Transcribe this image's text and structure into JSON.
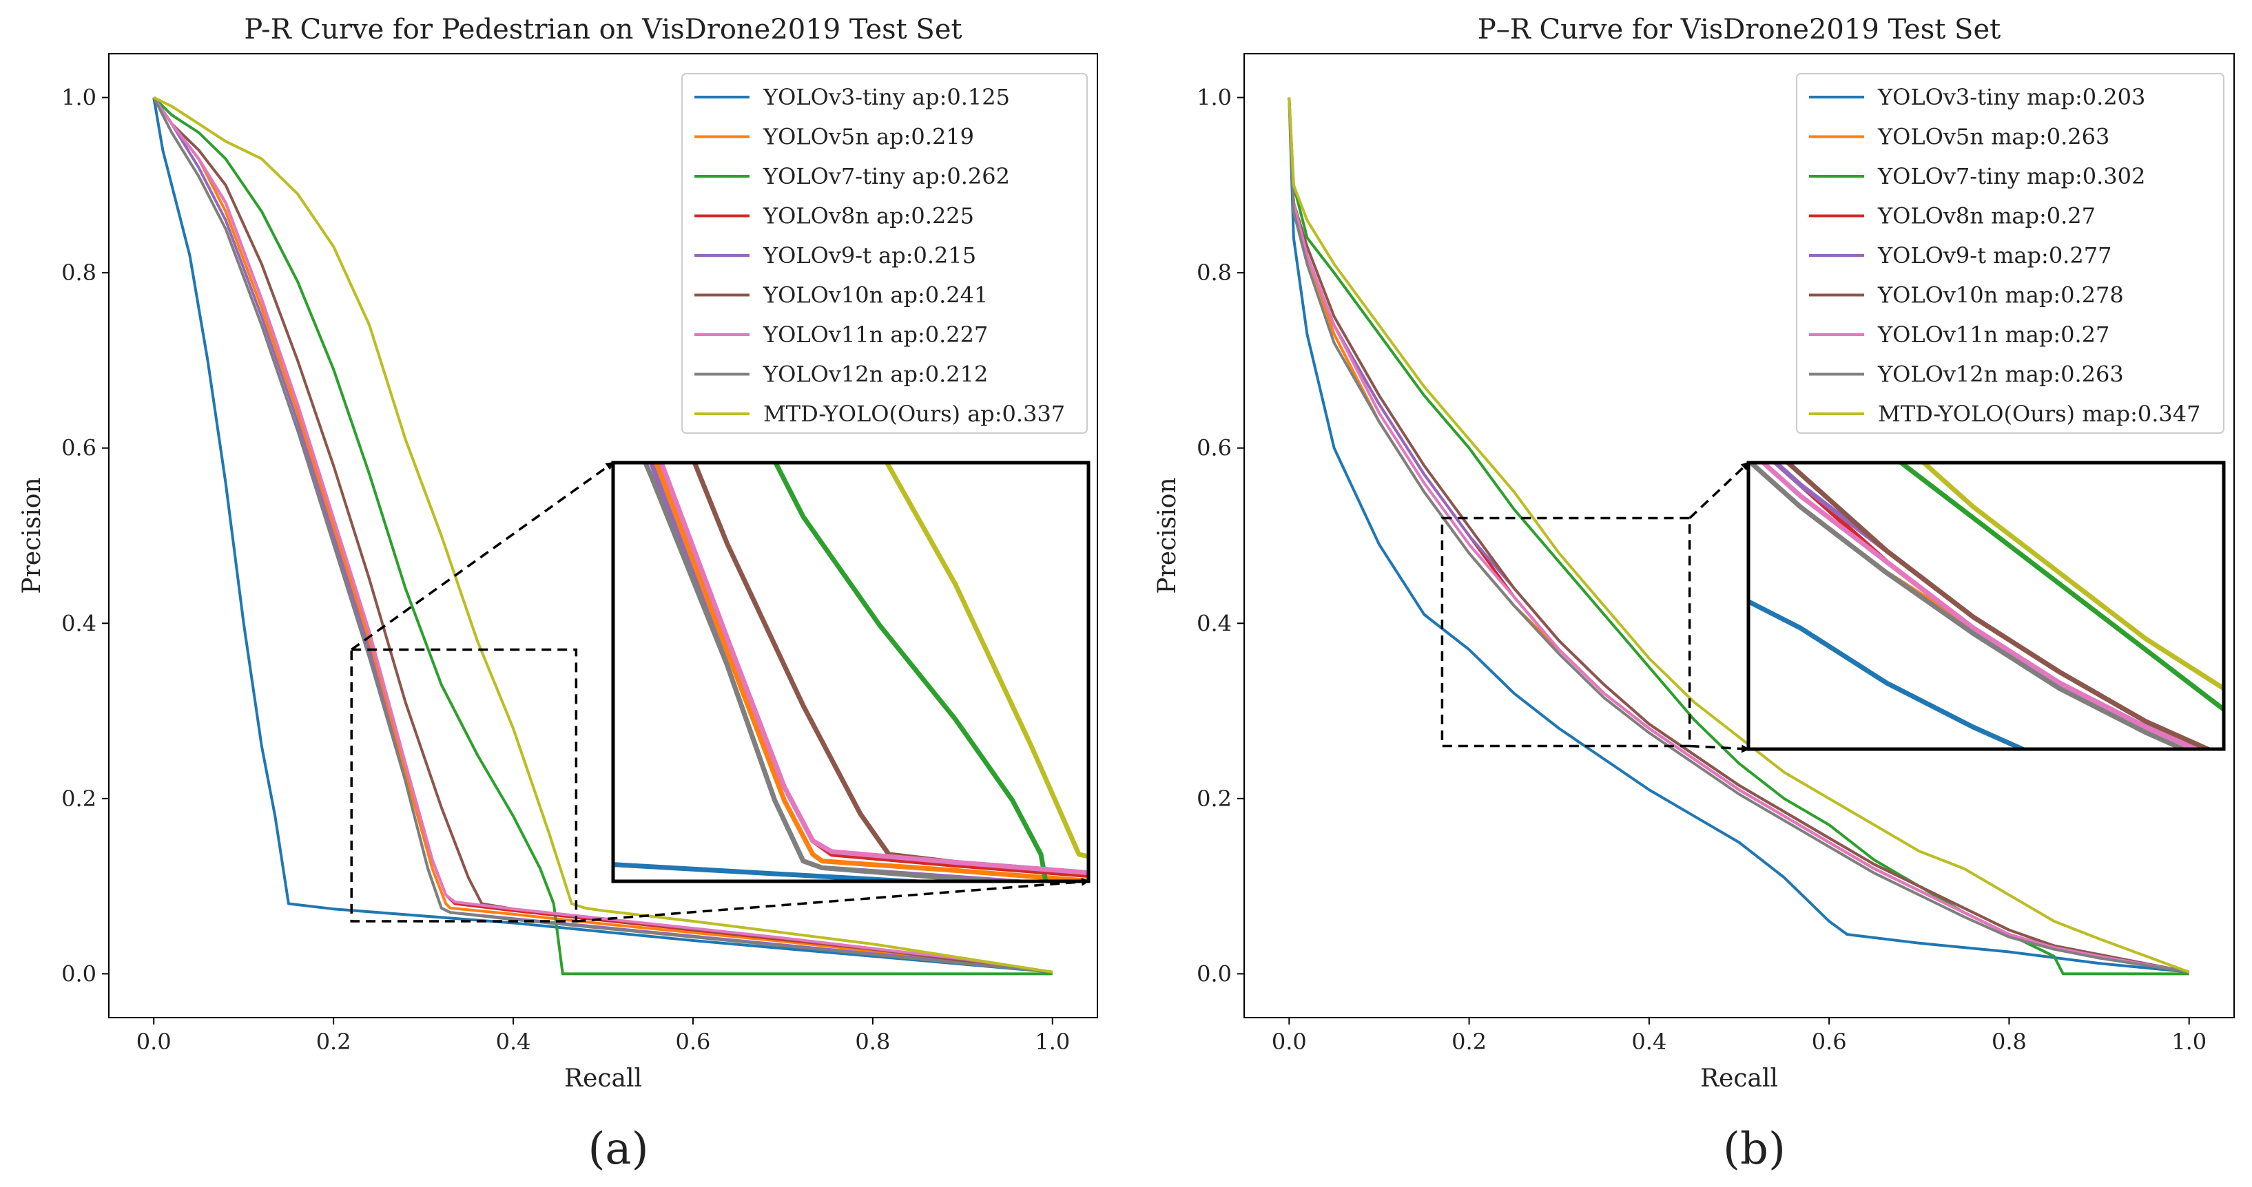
{
  "colors": {
    "tab_blue": "#1f77b4",
    "tab_orange": "#ff7f0e",
    "tab_green": "#2ca02c",
    "tab_red": "#d62728",
    "tab_purple": "#9467bd",
    "tab_brown": "#8c564b",
    "tab_pink": "#e377c2",
    "tab_gray": "#7f7f7f",
    "tab_olive": "#bcbd22"
  },
  "chart_data": [
    {
      "type": "line",
      "panel_label": "(a)",
      "title": "P-R Curve for Pedestrian on VisDrone2019 Test Set",
      "xlabel": "Recall",
      "ylabel": "Precision",
      "xlim": [
        -0.05,
        1.05
      ],
      "ylim": [
        -0.05,
        1.05
      ],
      "xticks": [
        "0.0",
        "0.2",
        "0.4",
        "0.6",
        "0.8",
        "1.0"
      ],
      "yticks": [
        "0.0",
        "0.2",
        "0.4",
        "0.6",
        "0.8",
        "1.0"
      ],
      "legend_position": "top-right",
      "grid": false,
      "zoom_region": {
        "x": [
          0.22,
          0.47
        ],
        "y": [
          0.06,
          0.37
        ]
      },
      "series": [
        {
          "name": "YOLOv3-tiny ap:0.125",
          "color": "#1f77b4",
          "x": [
            0.0,
            0.01,
            0.02,
            0.04,
            0.06,
            0.08,
            0.1,
            0.12,
            0.135,
            0.15,
            0.2,
            0.3,
            0.4,
            0.5,
            0.6,
            0.7,
            0.8,
            0.9,
            1.0
          ],
          "y": [
            1.0,
            0.94,
            0.9,
            0.82,
            0.7,
            0.56,
            0.4,
            0.26,
            0.18,
            0.08,
            0.074,
            0.066,
            0.058,
            0.048,
            0.038,
            0.029,
            0.02,
            0.011,
            0.002
          ]
        },
        {
          "name": "YOLOv5n ap:0.219",
          "color": "#ff7f0e",
          "x": [
            0.0,
            0.02,
            0.05,
            0.08,
            0.12,
            0.16,
            0.2,
            0.24,
            0.28,
            0.31,
            0.325,
            0.33,
            0.4,
            0.5,
            0.6,
            0.7,
            0.8,
            0.9,
            1.0
          ],
          "y": [
            1.0,
            0.97,
            0.93,
            0.87,
            0.76,
            0.64,
            0.51,
            0.38,
            0.23,
            0.12,
            0.08,
            0.075,
            0.068,
            0.057,
            0.047,
            0.037,
            0.026,
            0.014,
            0.002
          ]
        },
        {
          "name": "YOLOv7-tiny ap:0.262",
          "color": "#2ca02c",
          "x": [
            0.0,
            0.02,
            0.05,
            0.08,
            0.12,
            0.16,
            0.2,
            0.24,
            0.28,
            0.32,
            0.36,
            0.4,
            0.43,
            0.445,
            0.455,
            0.5,
            0.6,
            0.7,
            0.8,
            0.9,
            1.0
          ],
          "y": [
            1.0,
            0.98,
            0.96,
            0.93,
            0.87,
            0.79,
            0.69,
            0.57,
            0.44,
            0.33,
            0.25,
            0.18,
            0.12,
            0.08,
            0.0,
            0.0,
            0.0,
            0.0,
            0.0,
            0.0,
            0.0
          ]
        },
        {
          "name": "YOLOv8n ap:0.225",
          "color": "#d62728",
          "x": [
            0.0,
            0.02,
            0.05,
            0.08,
            0.12,
            0.16,
            0.2,
            0.24,
            0.28,
            0.31,
            0.325,
            0.335,
            0.4,
            0.5,
            0.6,
            0.7,
            0.8,
            0.9,
            1.0
          ],
          "y": [
            1.0,
            0.97,
            0.93,
            0.88,
            0.77,
            0.65,
            0.52,
            0.39,
            0.24,
            0.13,
            0.09,
            0.08,
            0.072,
            0.061,
            0.05,
            0.039,
            0.028,
            0.016,
            0.002
          ]
        },
        {
          "name": "YOLOv9-t ap:0.215",
          "color": "#9467bd",
          "x": [
            0.0,
            0.02,
            0.05,
            0.08,
            0.12,
            0.16,
            0.2,
            0.24,
            0.28,
            0.305,
            0.32,
            0.33,
            0.4,
            0.5,
            0.6,
            0.7,
            0.8,
            0.9,
            1.0
          ],
          "y": [
            1.0,
            0.97,
            0.92,
            0.86,
            0.75,
            0.63,
            0.5,
            0.37,
            0.22,
            0.12,
            0.075,
            0.07,
            0.063,
            0.053,
            0.043,
            0.033,
            0.023,
            0.013,
            0.002
          ]
        },
        {
          "name": "YOLOv10n ap:0.241",
          "color": "#8c564b",
          "x": [
            0.0,
            0.02,
            0.05,
            0.08,
            0.12,
            0.16,
            0.2,
            0.24,
            0.28,
            0.32,
            0.35,
            0.365,
            0.4,
            0.5,
            0.6,
            0.7,
            0.8,
            0.9,
            1.0
          ],
          "y": [
            1.0,
            0.97,
            0.94,
            0.9,
            0.81,
            0.7,
            0.58,
            0.45,
            0.31,
            0.19,
            0.11,
            0.08,
            0.074,
            0.063,
            0.051,
            0.04,
            0.028,
            0.015,
            0.002
          ]
        },
        {
          "name": "YOLOv11n ap:0.227",
          "color": "#e377c2",
          "x": [
            0.0,
            0.02,
            0.05,
            0.08,
            0.12,
            0.16,
            0.2,
            0.24,
            0.28,
            0.31,
            0.325,
            0.335,
            0.4,
            0.5,
            0.6,
            0.7,
            0.8,
            0.9,
            1.0
          ],
          "y": [
            1.0,
            0.97,
            0.93,
            0.88,
            0.77,
            0.65,
            0.52,
            0.39,
            0.24,
            0.13,
            0.09,
            0.082,
            0.074,
            0.063,
            0.052,
            0.041,
            0.029,
            0.017,
            0.002
          ]
        },
        {
          "name": "YOLOv12n ap:0.212",
          "color": "#7f7f7f",
          "x": [
            0.0,
            0.02,
            0.05,
            0.08,
            0.12,
            0.16,
            0.2,
            0.24,
            0.28,
            0.305,
            0.32,
            0.33,
            0.4,
            0.5,
            0.6,
            0.7,
            0.8,
            0.9,
            1.0
          ],
          "y": [
            1.0,
            0.96,
            0.91,
            0.85,
            0.74,
            0.62,
            0.49,
            0.36,
            0.22,
            0.12,
            0.075,
            0.07,
            0.062,
            0.052,
            0.042,
            0.032,
            0.022,
            0.012,
            0.002
          ]
        },
        {
          "name": "MTD-YOLO(Ours) ap:0.337",
          "color": "#bcbd22",
          "x": [
            0.0,
            0.02,
            0.05,
            0.08,
            0.12,
            0.16,
            0.2,
            0.24,
            0.28,
            0.32,
            0.36,
            0.4,
            0.44,
            0.465,
            0.48,
            0.5,
            0.6,
            0.7,
            0.8,
            0.9,
            1.0
          ],
          "y": [
            1.0,
            0.99,
            0.97,
            0.95,
            0.93,
            0.89,
            0.83,
            0.74,
            0.61,
            0.5,
            0.38,
            0.28,
            0.16,
            0.08,
            0.075,
            0.072,
            0.06,
            0.047,
            0.034,
            0.018,
            0.002
          ]
        }
      ]
    },
    {
      "type": "line",
      "panel_label": "(b)",
      "title": "P–R Curve for VisDrone2019 Test Set",
      "xlabel": "Recall",
      "ylabel": "Precision",
      "xlim": [
        -0.05,
        1.05
      ],
      "ylim": [
        -0.05,
        1.05
      ],
      "xticks": [
        "0.0",
        "0.2",
        "0.4",
        "0.6",
        "0.8",
        "1.0"
      ],
      "yticks": [
        "0.0",
        "0.2",
        "0.4",
        "0.6",
        "0.8",
        "1.0"
      ],
      "legend_position": "top-right",
      "grid": false,
      "zoom_region": {
        "x": [
          0.17,
          0.445
        ],
        "y": [
          0.26,
          0.52
        ]
      },
      "series": [
        {
          "name": "YOLOv3-tiny map:0.203",
          "color": "#1f77b4",
          "x": [
            0.0,
            0.005,
            0.02,
            0.05,
            0.1,
            0.15,
            0.2,
            0.25,
            0.3,
            0.35,
            0.4,
            0.45,
            0.5,
            0.55,
            0.6,
            0.62,
            0.7,
            0.8,
            0.9,
            1.0
          ],
          "y": [
            1.0,
            0.84,
            0.73,
            0.6,
            0.49,
            0.41,
            0.37,
            0.32,
            0.28,
            0.245,
            0.21,
            0.18,
            0.15,
            0.11,
            0.06,
            0.045,
            0.035,
            0.025,
            0.012,
            0.002
          ]
        },
        {
          "name": "YOLOv5n map:0.263",
          "color": "#ff7f0e",
          "x": [
            0.0,
            0.005,
            0.02,
            0.05,
            0.1,
            0.15,
            0.2,
            0.25,
            0.3,
            0.35,
            0.4,
            0.45,
            0.5,
            0.55,
            0.6,
            0.65,
            0.7,
            0.75,
            0.8,
            0.85,
            0.9,
            1.0
          ],
          "y": [
            1.0,
            0.88,
            0.82,
            0.73,
            0.63,
            0.55,
            0.48,
            0.42,
            0.37,
            0.32,
            0.28,
            0.245,
            0.21,
            0.18,
            0.15,
            0.12,
            0.095,
            0.07,
            0.045,
            0.03,
            0.02,
            0.002
          ]
        },
        {
          "name": "YOLOv7-tiny map:0.302",
          "color": "#2ca02c",
          "x": [
            0.0,
            0.005,
            0.02,
            0.05,
            0.1,
            0.15,
            0.2,
            0.25,
            0.3,
            0.35,
            0.4,
            0.45,
            0.5,
            0.55,
            0.6,
            0.65,
            0.7,
            0.75,
            0.8,
            0.85,
            0.86,
            0.9,
            1.0
          ],
          "y": [
            1.0,
            0.9,
            0.84,
            0.8,
            0.73,
            0.66,
            0.6,
            0.53,
            0.47,
            0.41,
            0.35,
            0.29,
            0.24,
            0.2,
            0.17,
            0.13,
            0.1,
            0.07,
            0.045,
            0.02,
            0.0,
            0.0,
            0.0
          ]
        },
        {
          "name": "YOLOv8n map:0.27",
          "color": "#d62728",
          "x": [
            0.0,
            0.005,
            0.02,
            0.05,
            0.1,
            0.15,
            0.2,
            0.25,
            0.3,
            0.35,
            0.4,
            0.45,
            0.5,
            0.55,
            0.6,
            0.65,
            0.7,
            0.75,
            0.8,
            0.85,
            0.9,
            1.0
          ],
          "y": [
            1.0,
            0.88,
            0.82,
            0.74,
            0.65,
            0.57,
            0.5,
            0.43,
            0.37,
            0.32,
            0.28,
            0.245,
            0.21,
            0.18,
            0.15,
            0.12,
            0.095,
            0.07,
            0.045,
            0.03,
            0.02,
            0.002
          ]
        },
        {
          "name": "YOLOv9-t map:0.277",
          "color": "#9467bd",
          "x": [
            0.0,
            0.005,
            0.02,
            0.05,
            0.1,
            0.15,
            0.2,
            0.25,
            0.3,
            0.35,
            0.4,
            0.45,
            0.5,
            0.55,
            0.6,
            0.65,
            0.7,
            0.75,
            0.8,
            0.85,
            0.9,
            1.0
          ],
          "y": [
            1.0,
            0.88,
            0.82,
            0.74,
            0.65,
            0.57,
            0.5,
            0.44,
            0.38,
            0.33,
            0.285,
            0.25,
            0.215,
            0.185,
            0.155,
            0.125,
            0.1,
            0.075,
            0.05,
            0.032,
            0.022,
            0.002
          ]
        },
        {
          "name": "YOLOv10n map:0.278",
          "color": "#8c564b",
          "x": [
            0.0,
            0.005,
            0.02,
            0.05,
            0.1,
            0.15,
            0.2,
            0.25,
            0.3,
            0.35,
            0.4,
            0.45,
            0.5,
            0.55,
            0.6,
            0.65,
            0.7,
            0.75,
            0.8,
            0.85,
            0.9,
            1.0
          ],
          "y": [
            1.0,
            0.88,
            0.83,
            0.75,
            0.66,
            0.58,
            0.51,
            0.44,
            0.38,
            0.33,
            0.285,
            0.25,
            0.215,
            0.185,
            0.155,
            0.125,
            0.1,
            0.075,
            0.05,
            0.032,
            0.022,
            0.002
          ]
        },
        {
          "name": "YOLOv11n map:0.27",
          "color": "#e377c2",
          "x": [
            0.0,
            0.005,
            0.02,
            0.05,
            0.1,
            0.15,
            0.2,
            0.25,
            0.3,
            0.35,
            0.4,
            0.45,
            0.5,
            0.55,
            0.6,
            0.65,
            0.7,
            0.75,
            0.8,
            0.85,
            0.9,
            1.0
          ],
          "y": [
            1.0,
            0.88,
            0.82,
            0.74,
            0.64,
            0.56,
            0.49,
            0.43,
            0.37,
            0.32,
            0.28,
            0.245,
            0.21,
            0.18,
            0.15,
            0.12,
            0.095,
            0.07,
            0.045,
            0.03,
            0.02,
            0.002
          ]
        },
        {
          "name": "YOLOv12n map:0.263",
          "color": "#7f7f7f",
          "x": [
            0.0,
            0.005,
            0.02,
            0.05,
            0.1,
            0.15,
            0.2,
            0.25,
            0.3,
            0.35,
            0.4,
            0.45,
            0.5,
            0.55,
            0.6,
            0.65,
            0.7,
            0.75,
            0.8,
            0.85,
            0.9,
            1.0
          ],
          "y": [
            1.0,
            0.87,
            0.81,
            0.72,
            0.63,
            0.55,
            0.48,
            0.42,
            0.365,
            0.315,
            0.275,
            0.24,
            0.205,
            0.175,
            0.145,
            0.115,
            0.09,
            0.065,
            0.042,
            0.028,
            0.018,
            0.002
          ]
        },
        {
          "name": "MTD-YOLO(Ours) map:0.347",
          "color": "#bcbd22",
          "x": [
            0.0,
            0.005,
            0.02,
            0.05,
            0.1,
            0.15,
            0.2,
            0.25,
            0.3,
            0.35,
            0.4,
            0.45,
            0.5,
            0.55,
            0.6,
            0.65,
            0.7,
            0.75,
            0.8,
            0.85,
            0.9,
            1.0
          ],
          "y": [
            1.0,
            0.9,
            0.86,
            0.81,
            0.74,
            0.67,
            0.61,
            0.55,
            0.48,
            0.42,
            0.36,
            0.31,
            0.27,
            0.23,
            0.2,
            0.17,
            0.14,
            0.12,
            0.09,
            0.06,
            0.04,
            0.002
          ]
        }
      ]
    }
  ]
}
